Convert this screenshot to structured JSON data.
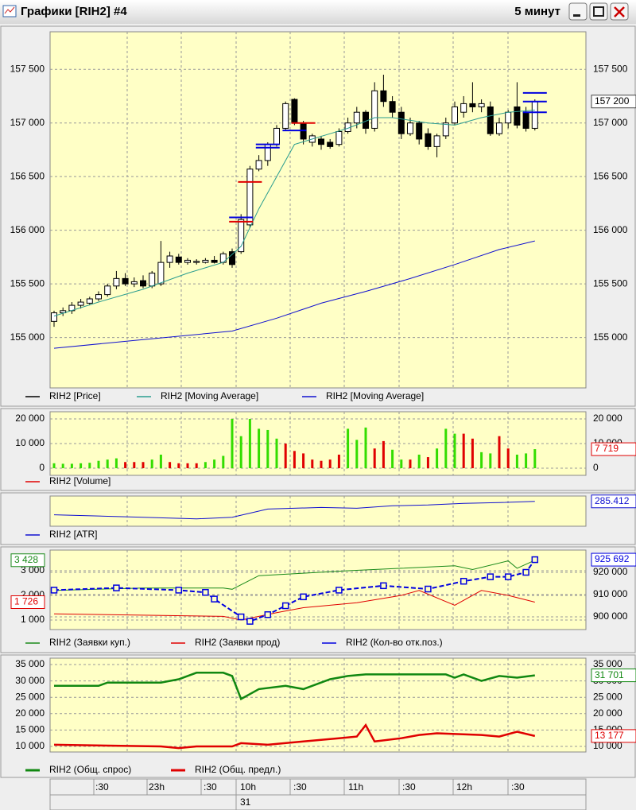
{
  "window": {
    "title": "Графики [RIH2] #4",
    "interval": "5 минут"
  },
  "time_axis": {
    "labels": [
      ":30",
      "23h",
      ":30",
      "10h",
      ":30",
      "11h",
      ":30",
      "12h",
      ":30"
    ],
    "date": "31"
  },
  "chart_data": [
    {
      "type": "candlestick",
      "grid": true,
      "axis_sides": "both",
      "ylim": [
        154530,
        157850
      ],
      "yticks": [
        {
          "value": 157500,
          "label": "157 500"
        },
        {
          "value": 157000,
          "label": "157 000"
        },
        {
          "value": 156500,
          "label": "156 500"
        },
        {
          "value": 156000,
          "label": "156 000"
        },
        {
          "value": 155500,
          "label": "155 500"
        },
        {
          "value": 155000,
          "label": "155 000"
        }
      ],
      "series": [
        {
          "name": "RIH2 [Price]",
          "color": "#000000",
          "last_label": "157 200",
          "open": [
            155150,
            155230,
            155250,
            155300,
            155320,
            155360,
            155400,
            155480,
            155550,
            155500,
            155530,
            155480,
            155500,
            155700,
            155750,
            155700,
            155700,
            155700,
            155720,
            155700,
            155800,
            155800,
            156050,
            156570,
            156650,
            156800,
            156950,
            157220,
            157000,
            156820,
            156850,
            156820,
            156800,
            156920,
            157000,
            157100,
            156950,
            157300,
            157200,
            157100,
            156900,
            157000,
            156900,
            156780,
            156880,
            157000,
            157100,
            157180,
            157150,
            157150,
            156900,
            157000,
            157150,
            157100,
            156950
          ],
          "high": [
            155250,
            155280,
            155330,
            155360,
            155380,
            155430,
            155500,
            155620,
            155600,
            155560,
            155580,
            155620,
            155900,
            155800,
            155780,
            155740,
            155730,
            155740,
            155760,
            155800,
            155830,
            156150,
            156600,
            156700,
            156820,
            156980,
            157200,
            157230,
            157020,
            156900,
            156880,
            156850,
            156950,
            157050,
            157150,
            157120,
            157380,
            157450,
            157250,
            157150,
            157050,
            157020,
            156950,
            156900,
            157050,
            157200,
            157250,
            157380,
            157220,
            157200,
            157050,
            157120,
            157380,
            157150,
            157220
          ],
          "low": [
            155100,
            155200,
            155220,
            155270,
            155300,
            155340,
            155380,
            155450,
            155480,
            155470,
            155460,
            155460,
            155480,
            155650,
            155680,
            155680,
            155680,
            155690,
            155690,
            155680,
            155650,
            155780,
            156020,
            156550,
            156600,
            156780,
            156930,
            156980,
            156800,
            156780,
            156750,
            156760,
            156780,
            156900,
            156950,
            156900,
            156920,
            157150,
            157050,
            156850,
            156880,
            156800,
            156750,
            156680,
            156850,
            156980,
            157050,
            157100,
            157100,
            156880,
            156880,
            156950,
            156950,
            156920,
            156930
          ],
          "close": [
            155230,
            155250,
            155300,
            155330,
            155360,
            155400,
            155480,
            155550,
            155500,
            155520,
            155480,
            155600,
            155700,
            155760,
            155700,
            155720,
            155710,
            155720,
            155700,
            155780,
            155680,
            156100,
            156570,
            156650,
            156800,
            156950,
            157180,
            157000,
            156850,
            156880,
            156800,
            156780,
            156920,
            157000,
            157100,
            156950,
            157300,
            157200,
            157100,
            156900,
            157000,
            156850,
            156780,
            156880,
            157000,
            157150,
            157180,
            157150,
            157180,
            156900,
            157000,
            157100,
            156980,
            156950,
            157200
          ]
        },
        {
          "name": "RIH2 [Moving Average]",
          "color": "#2a9d8f",
          "x": [
            0,
            5,
            10,
            15,
            19,
            21,
            23,
            25,
            27,
            29,
            31,
            33,
            36,
            38,
            42,
            45,
            48,
            51,
            54
          ],
          "values": [
            155200,
            155330,
            155450,
            155600,
            155700,
            155850,
            156200,
            156500,
            156800,
            156850,
            156900,
            156950,
            157050,
            157050,
            157000,
            156980,
            157050,
            157100,
            157120
          ]
        },
        {
          "name": "RIH2 [Moving Average]",
          "color": "#1010d0",
          "x": [
            0,
            10,
            20,
            25,
            30,
            35,
            40,
            45,
            50,
            54
          ],
          "values": [
            154900,
            154980,
            155060,
            155180,
            155320,
            155430,
            155550,
            155680,
            155820,
            155900
          ]
        }
      ],
      "markers": [
        {
          "x": 21,
          "value": 156080,
          "color": "#e00000"
        },
        {
          "x": 21,
          "value": 156120,
          "color": "#0000e0"
        },
        {
          "x": 22,
          "value": 156450,
          "color": "#e00000"
        },
        {
          "x": 24,
          "value": 156800,
          "color": "#0000e0"
        },
        {
          "x": 24,
          "value": 156770,
          "color": "#0000e0"
        },
        {
          "x": 27,
          "value": 156930,
          "color": "#0000e0"
        },
        {
          "x": 28,
          "value": 157000,
          "color": "#e00000"
        },
        {
          "x": 54,
          "value": 157280,
          "color": "#0000e0"
        },
        {
          "x": 54,
          "value": 157200,
          "color": "#0000e0"
        },
        {
          "x": 54,
          "value": 157100,
          "color": "#0000e0"
        }
      ]
    },
    {
      "type": "bar",
      "grid": true,
      "axis_sides": "both",
      "ylim": [
        -2900,
        22900
      ],
      "yticks": [
        {
          "value": 20000,
          "label": "20 000"
        },
        {
          "value": 10000,
          "label": "10 000"
        },
        0
      ],
      "series": [
        {
          "name": "RIH2 [Volume]",
          "color": "#e00000",
          "last_label": "7 719",
          "values": [
            2000,
            1800,
            1800,
            2000,
            2200,
            3000,
            3500,
            4000,
            2500,
            2500,
            2500,
            3500,
            5500,
            2500,
            2000,
            2000,
            2000,
            2500,
            3500,
            5000,
            20000,
            13000,
            20000,
            16000,
            15500,
            12000,
            10000,
            7000,
            6000,
            3500,
            3000,
            3500,
            5500,
            16000,
            11500,
            16500,
            8000,
            11000,
            7500,
            3500,
            3500,
            5500,
            4500,
            8000,
            16000,
            14000,
            14000,
            12000,
            6500,
            6000,
            13000,
            8000,
            5500,
            6000,
            7719
          ],
          "colors": [
            "#33dd00",
            "#33dd00",
            "#33dd00",
            "#33dd00",
            "#33dd00",
            "#33dd00",
            "#33dd00",
            "#33dd00",
            "#e00000",
            "#e00000",
            "#e00000",
            "#33dd00",
            "#33dd00",
            "#e00000",
            "#e00000",
            "#e00000",
            "#e00000",
            "#33dd00",
            "#33dd00",
            "#33dd00",
            "#33dd00",
            "#33dd00",
            "#33dd00",
            "#33dd00",
            "#33dd00",
            "#33dd00",
            "#e00000",
            "#e00000",
            "#e00000",
            "#e00000",
            "#e00000",
            "#e00000",
            "#e00000",
            "#33dd00",
            "#33dd00",
            "#33dd00",
            "#e00000",
            "#e00000",
            "#33dd00",
            "#33dd00",
            "#e00000",
            "#33dd00",
            "#e00000",
            "#33dd00",
            "#33dd00",
            "#33dd00",
            "#e00000",
            "#e00000",
            "#33dd00",
            "#33dd00",
            "#e00000",
            "#e00000",
            "#33dd00",
            "#33dd00",
            "#33dd00"
          ]
        }
      ]
    },
    {
      "type": "line",
      "grid": false,
      "ylim": [
        255,
        292
      ],
      "series": [
        {
          "name": "RIH2 [ATR]",
          "color": "#1010d0",
          "last_label": "285.412",
          "x": [
            0,
            10,
            16,
            20,
            24,
            30,
            34,
            38,
            42,
            46,
            50,
            54
          ],
          "values": [
            269,
            266,
            264,
            266,
            276,
            278,
            277,
            280,
            281,
            283,
            284,
            285.412
          ]
        }
      ]
    },
    {
      "type": "line",
      "grid": true,
      "ylim": [
        613,
        3840
      ],
      "y2lim": [
        894300,
        930000
      ],
      "yticks": [
        {
          "value": 3000,
          "label": "3 000"
        },
        {
          "value": 2000,
          "label": "2 000"
        },
        {
          "value": 1000,
          "label": "1 000"
        }
      ],
      "y2ticks": [
        {
          "value": 920000,
          "label": "920 000"
        },
        {
          "value": 910000,
          "label": "910 000"
        },
        {
          "value": 900000,
          "label": "900 000"
        }
      ],
      "series": [
        {
          "name": "RIH2 (Заявки куп.)",
          "color": "#1a8a1a",
          "last_label": "3 428",
          "label_side": "left",
          "x": [
            0,
            10,
            19,
            20,
            23,
            28,
            33,
            39,
            45,
            47,
            51,
            52,
            54
          ],
          "values": [
            2200,
            2300,
            2300,
            2250,
            2800,
            2900,
            3000,
            3100,
            3200,
            3050,
            3400,
            3100,
            3428
          ]
        },
        {
          "name": "RIH2 (Заявки прод)",
          "color": "#e00000",
          "last_label": "1 726",
          "label_side": "left",
          "x": [
            0,
            19,
            21,
            25,
            28,
            34,
            39,
            41,
            45,
            48,
            51,
            54
          ],
          "values": [
            1250,
            1150,
            1000,
            1300,
            1500,
            1700,
            2000,
            2200,
            1600,
            2200,
            2000,
            1726
          ]
        },
        {
          "name": "RIH2 (Кол-во отк.поз.)",
          "color": "#0000e0",
          "axis": "y2",
          "last_label": "925 692",
          "style": "dashed-squares",
          "x": [
            0,
            7,
            14,
            17,
            18,
            21,
            22,
            24,
            26,
            28,
            32,
            37,
            42,
            46,
            49,
            51,
            53,
            54
          ],
          "values": [
            912000,
            913000,
            912000,
            911000,
            908000,
            900000,
            898000,
            901000,
            905000,
            909000,
            912000,
            914000,
            912500,
            916000,
            918000,
            918000,
            920000,
            925692
          ]
        }
      ]
    },
    {
      "type": "line",
      "grid": true,
      "axis_sides": "both",
      "ylim": [
        8300,
        36940
      ],
      "yticks": [
        {
          "value": 35000,
          "label": "35 000"
        },
        {
          "value": 30000,
          "label": "30 000"
        },
        {
          "value": 25000,
          "label": "25 000"
        },
        {
          "value": 20000,
          "label": "20 000"
        },
        {
          "value": 15000,
          "label": "15 000"
        },
        {
          "value": 10000,
          "label": "10 000"
        }
      ],
      "series": [
        {
          "name": "RIH2 (Общ. спрос)",
          "color": "#118811",
          "last_label": "31 701",
          "width": 2.5,
          "x": [
            0,
            5,
            6,
            12,
            14,
            16,
            19,
            20,
            21,
            23,
            26,
            28,
            31,
            33,
            35,
            44,
            45,
            46,
            48,
            50,
            52,
            54
          ],
          "values": [
            28500,
            28500,
            29500,
            29500,
            30500,
            32500,
            32500,
            31500,
            24500,
            27500,
            28500,
            27500,
            30500,
            31500,
            32000,
            32000,
            31000,
            32000,
            30000,
            31500,
            31000,
            31701
          ]
        },
        {
          "name": "RIH2 (Общ. предл.)",
          "color": "#e00000",
          "last_label": "13 177",
          "width": 2.5,
          "x": [
            0,
            12,
            14,
            16,
            20,
            21,
            24,
            28,
            32,
            34,
            35,
            36,
            39,
            41,
            43,
            48,
            50,
            52,
            54
          ],
          "values": [
            10500,
            10000,
            9500,
            10000,
            10000,
            11000,
            10500,
            11500,
            12500,
            13000,
            16500,
            11500,
            12500,
            13500,
            14000,
            13500,
            13000,
            14500,
            13177
          ]
        }
      ]
    }
  ]
}
